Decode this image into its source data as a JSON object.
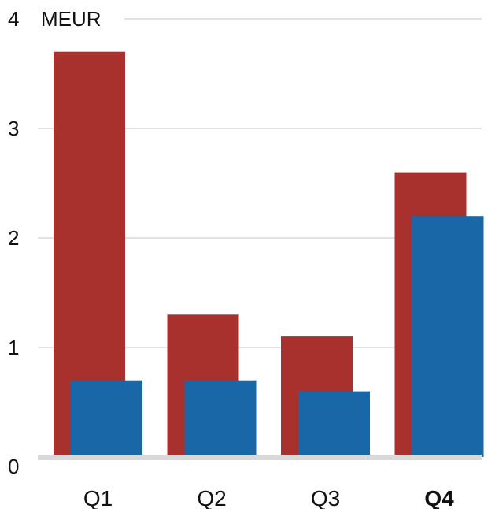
{
  "chart_data": {
    "type": "bar",
    "unit": "MEUR",
    "categories": [
      "Q1",
      "Q2",
      "Q3",
      "Q4"
    ],
    "highlighted_category": "Q4",
    "series": [
      {
        "values": [
          3.7,
          1.3,
          1.1,
          2.6
        ],
        "color": "#a8302d"
      },
      {
        "values": [
          0.7,
          0.7,
          0.6,
          2.2
        ],
        "color": "#1a67a7"
      }
    ],
    "ylim": [
      0,
      4
    ],
    "yticks": [
      "0",
      "1",
      "2",
      "3",
      "4"
    ],
    "grid": true,
    "gridline_color": "#e2e2e2",
    "baseline_color": "#d9d9d9"
  }
}
